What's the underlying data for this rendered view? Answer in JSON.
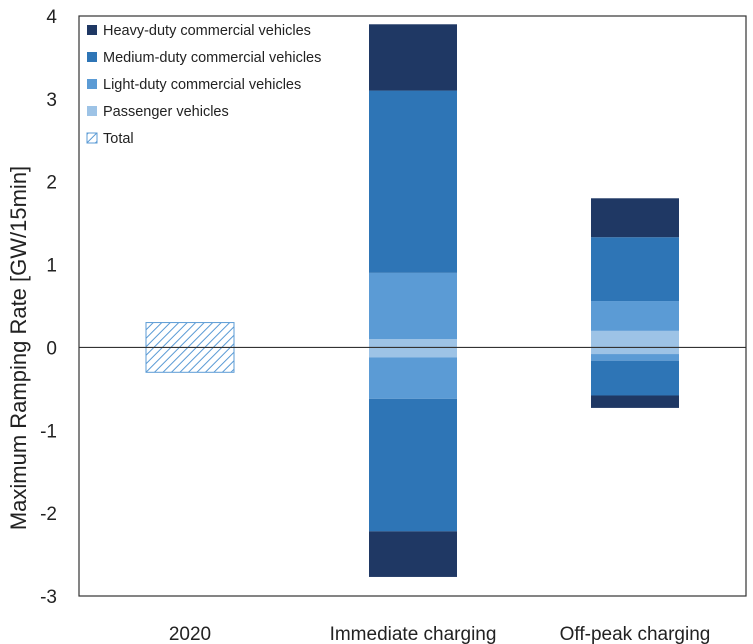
{
  "chart_data": {
    "type": "bar",
    "stacked": true,
    "diverging": true,
    "title": "",
    "xlabel": "",
    "ylabel": "Maximum Ramping Rate [GW/15min]",
    "ylim": [
      -3,
      4
    ],
    "yticks": [
      4,
      3,
      2,
      1,
      0,
      -1,
      -2,
      -3
    ],
    "grid": false,
    "legend_position": "top-left",
    "categories": [
      "2020",
      "Immediate charging",
      "Off-peak charging"
    ],
    "series": [
      {
        "name": "Heavy-duty commercial vehicles",
        "color": "#1f3864",
        "up": [
          0,
          0.8,
          0.47
        ],
        "down": [
          0,
          0.55,
          0.15
        ]
      },
      {
        "name": "Medium-duty commercial vehicles",
        "color": "#2e75b6",
        "up": [
          0,
          2.2,
          0.77
        ],
        "down": [
          0,
          1.6,
          0.42
        ]
      },
      {
        "name": "Light-duty commercial vehicles",
        "color": "#5b9bd5",
        "up": [
          0,
          0.8,
          0.36
        ],
        "down": [
          0,
          0.5,
          0.08
        ]
      },
      {
        "name": "Passenger vehicles",
        "color": "#9dc3e6",
        "up": [
          0,
          0.1,
          0.2
        ],
        "down": [
          0,
          0.12,
          0.08
        ]
      }
    ],
    "total": {
      "name": "Total",
      "color": "#5b9bd5",
      "pattern": "hatched",
      "up": [
        0.3,
        0,
        0
      ],
      "down": [
        0.3,
        0,
        0
      ]
    }
  }
}
